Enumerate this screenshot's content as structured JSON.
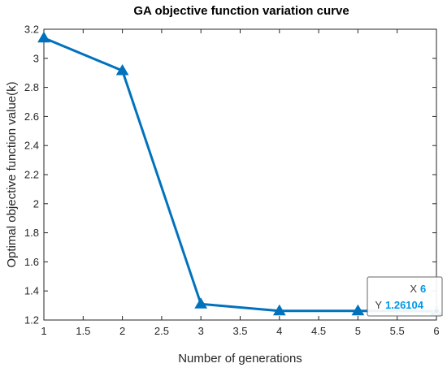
{
  "chart_data": {
    "type": "line",
    "title": "GA objective function variation curve",
    "xlabel": "Number of generations",
    "ylabel": "Optimal objective function value(k)",
    "xlim": [
      1,
      6
    ],
    "ylim": [
      1.2,
      3.2
    ],
    "xticks": [
      1,
      1.5,
      2,
      2.5,
      3,
      3.5,
      4,
      4.5,
      5,
      5.5,
      6
    ],
    "xtick_labels": [
      "1",
      "1.5",
      "2",
      "2.5",
      "3",
      "3.5",
      "4",
      "4.5",
      "5",
      "5.5",
      "6"
    ],
    "yticks": [
      1.2,
      1.4,
      1.6,
      1.8,
      2,
      2.2,
      2.4,
      2.6,
      2.8,
      3,
      3.2
    ],
    "ytick_labels": [
      "1.2",
      "1.4",
      "1.6",
      "1.8",
      "2",
      "2.2",
      "2.4",
      "2.6",
      "2.8",
      "3",
      "3.2"
    ],
    "grid": false,
    "series": [
      {
        "x": [
          1,
          2,
          3,
          4,
          5,
          6
        ],
        "y": [
          3.14,
          2.915,
          1.31,
          1.263,
          1.263,
          1.26104
        ],
        "color": "#0072BD",
        "marker": "triangle"
      }
    ],
    "datatip": {
      "x_label": "X",
      "x_value": "6",
      "y_label": "Y",
      "y_value": "1.26104",
      "value_color": "#0096E6",
      "point_index": 5
    }
  }
}
